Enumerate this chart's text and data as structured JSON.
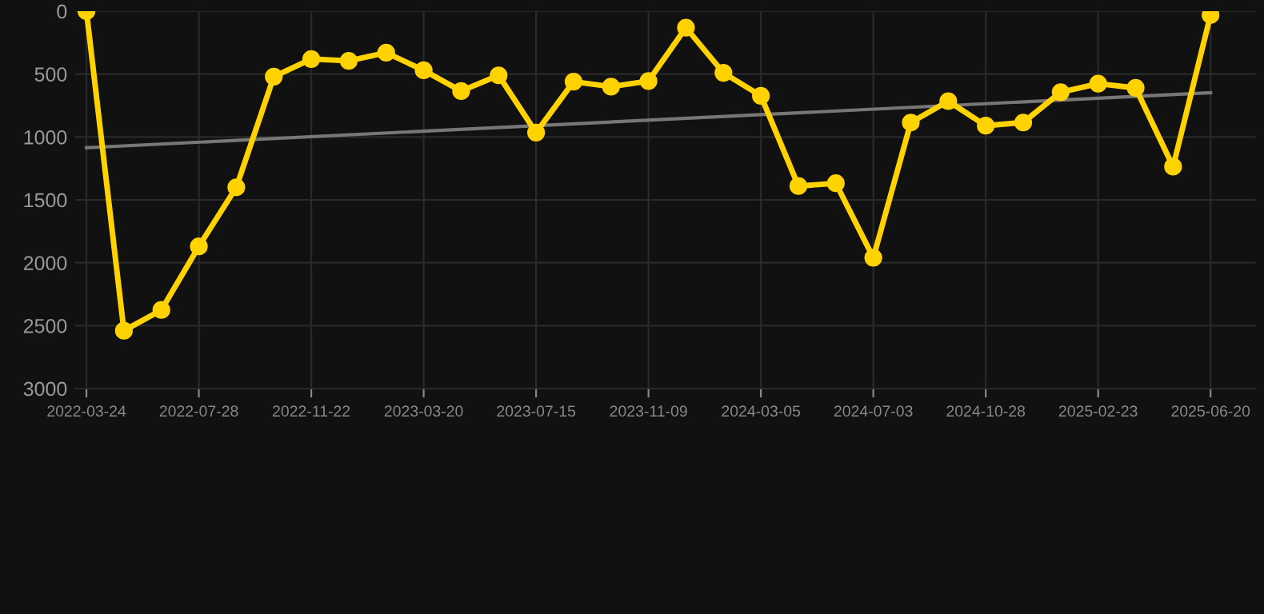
{
  "chart_data": {
    "type": "line",
    "categories": [
      "2022-03-24",
      null,
      null,
      "2022-07-28",
      null,
      null,
      "2022-11-22",
      null,
      null,
      "2023-03-20",
      null,
      null,
      "2023-07-15",
      null,
      null,
      "2023-11-09",
      null,
      null,
      "2024-03-05",
      null,
      null,
      "2024-07-03",
      null,
      null,
      "2024-10-28",
      null,
      null,
      "2025-02-23",
      null,
      null,
      "2025-06-20"
    ],
    "series": [
      {
        "color": "#ffd200",
        "marker": "circle",
        "values": [
          0,
          2540,
          2375,
          1870,
          1400,
          520,
          380,
          395,
          330,
          470,
          635,
          510,
          965,
          560,
          600,
          555,
          131,
          490,
          673,
          1390,
          1368,
          1960,
          885,
          715,
          910,
          885,
          644,
          576,
          610,
          1236,
          30
        ]
      },
      {
        "color": "#777777",
        "marker": "none",
        "values": [
          1085,
          null,
          null,
          null,
          null,
          null,
          null,
          null,
          null,
          null,
          null,
          null,
          null,
          null,
          null,
          null,
          null,
          null,
          null,
          null,
          null,
          null,
          null,
          null,
          null,
          null,
          null,
          null,
          null,
          null,
          648
        ]
      }
    ],
    "ylim": [
      3000,
      0
    ],
    "yticks": [
      0,
      500,
      1000,
      1500,
      2000,
      2500,
      3000
    ],
    "grid": true,
    "legend": false
  }
}
